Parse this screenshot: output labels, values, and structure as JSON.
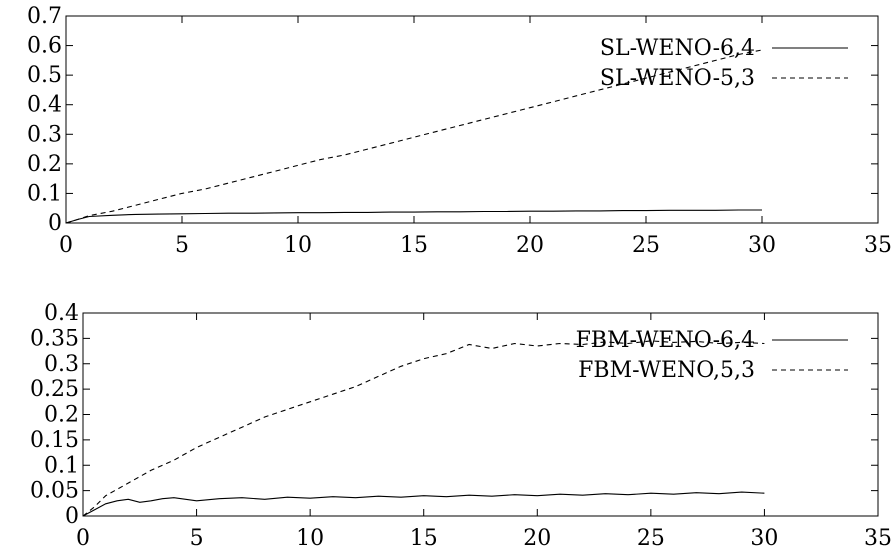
{
  "chart_data": [
    {
      "type": "line",
      "xlim": [
        0,
        35
      ],
      "ylim": [
        0,
        0.7
      ],
      "x_ticks": [
        0,
        5,
        10,
        15,
        20,
        25,
        30,
        35
      ],
      "y_ticks": [
        0,
        0.1,
        0.2,
        0.3,
        0.4,
        0.5,
        0.6,
        0.7
      ],
      "x_tick_labels": [
        "0",
        "5",
        "10",
        "15",
        "20",
        "25",
        "30",
        "35"
      ],
      "y_tick_labels": [
        "0",
        "0.1",
        "0.2",
        "0.3",
        "0.4",
        "0.5",
        "0.6",
        "0.7"
      ],
      "grid": false,
      "legend_position": "top-right",
      "series": [
        {
          "name": "SL-WENO-6,4",
          "style": "solid",
          "x": [
            0,
            0.5,
            1,
            2,
            3,
            4,
            5,
            6,
            7,
            8,
            9,
            10,
            11,
            12,
            13,
            14,
            15,
            16,
            17,
            18,
            19,
            20,
            21,
            22,
            23,
            24,
            25,
            26,
            27,
            28,
            29,
            30
          ],
          "y": [
            0,
            0.012,
            0.022,
            0.026,
            0.029,
            0.03,
            0.031,
            0.032,
            0.033,
            0.033,
            0.034,
            0.035,
            0.035,
            0.036,
            0.036,
            0.037,
            0.037,
            0.038,
            0.038,
            0.039,
            0.039,
            0.04,
            0.04,
            0.041,
            0.041,
            0.042,
            0.042,
            0.043,
            0.043,
            0.043,
            0.044,
            0.044
          ]
        },
        {
          "name": "SL-WENO-5,3",
          "style": "dashed",
          "x": [
            0,
            0.5,
            1,
            2,
            3,
            4,
            5,
            6,
            7,
            8,
            9,
            10,
            11,
            12,
            13,
            14,
            15,
            16,
            17,
            18,
            19,
            20,
            21,
            22,
            23,
            24,
            25,
            26,
            27,
            28,
            29,
            30
          ],
          "y": [
            0,
            0.012,
            0.025,
            0.04,
            0.06,
            0.08,
            0.1,
            0.115,
            0.135,
            0.155,
            0.175,
            0.195,
            0.215,
            0.23,
            0.25,
            0.27,
            0.29,
            0.31,
            0.33,
            0.35,
            0.37,
            0.39,
            0.41,
            0.43,
            0.45,
            0.47,
            0.49,
            0.51,
            0.53,
            0.55,
            0.57,
            0.585
          ]
        }
      ]
    },
    {
      "type": "line",
      "xlim": [
        0,
        35
      ],
      "ylim": [
        0,
        0.4
      ],
      "x_ticks": [
        0,
        5,
        10,
        15,
        20,
        25,
        30,
        35
      ],
      "y_ticks": [
        0,
        0.05,
        0.1,
        0.15,
        0.2,
        0.25,
        0.3,
        0.35,
        0.4
      ],
      "x_tick_labels": [
        "0",
        "5",
        "10",
        "15",
        "20",
        "25",
        "30",
        "35"
      ],
      "y_tick_labels": [
        "0",
        "0.05",
        "0.1",
        "0.15",
        "0.2",
        "0.25",
        "0.3",
        "0.35",
        "0.4"
      ],
      "grid": false,
      "legend_position": "top-right",
      "series": [
        {
          "name": "FBM-WENO-6,4",
          "style": "solid",
          "x": [
            0,
            0.5,
            1,
            1.5,
            2,
            2.5,
            3,
            3.5,
            4,
            5,
            6,
            7,
            8,
            9,
            10,
            11,
            12,
            13,
            14,
            15,
            16,
            17,
            18,
            19,
            20,
            21,
            22,
            23,
            24,
            25,
            26,
            27,
            28,
            29,
            30
          ],
          "y": [
            0,
            0.012,
            0.024,
            0.03,
            0.033,
            0.027,
            0.03,
            0.034,
            0.036,
            0.03,
            0.034,
            0.036,
            0.033,
            0.037,
            0.035,
            0.038,
            0.036,
            0.039,
            0.037,
            0.04,
            0.038,
            0.041,
            0.039,
            0.042,
            0.04,
            0.043,
            0.041,
            0.044,
            0.042,
            0.045,
            0.043,
            0.046,
            0.044,
            0.047,
            0.045
          ]
        },
        {
          "name": "FBM-WENO,5,3",
          "style": "dashed",
          "x": [
            0,
            0.5,
            1,
            2,
            3,
            4,
            5,
            6,
            7,
            8,
            9,
            10,
            11,
            12,
            13,
            14,
            15,
            16,
            17,
            18,
            19,
            20,
            21,
            22,
            23,
            24,
            25,
            26,
            27,
            28,
            29,
            30
          ],
          "y": [
            0,
            0.018,
            0.04,
            0.065,
            0.09,
            0.11,
            0.135,
            0.155,
            0.175,
            0.195,
            0.21,
            0.225,
            0.24,
            0.255,
            0.275,
            0.295,
            0.31,
            0.32,
            0.338,
            0.33,
            0.34,
            0.335,
            0.34,
            0.338,
            0.343,
            0.34,
            0.345,
            0.342,
            0.344,
            0.34,
            0.342,
            0.34
          ]
        }
      ]
    }
  ]
}
